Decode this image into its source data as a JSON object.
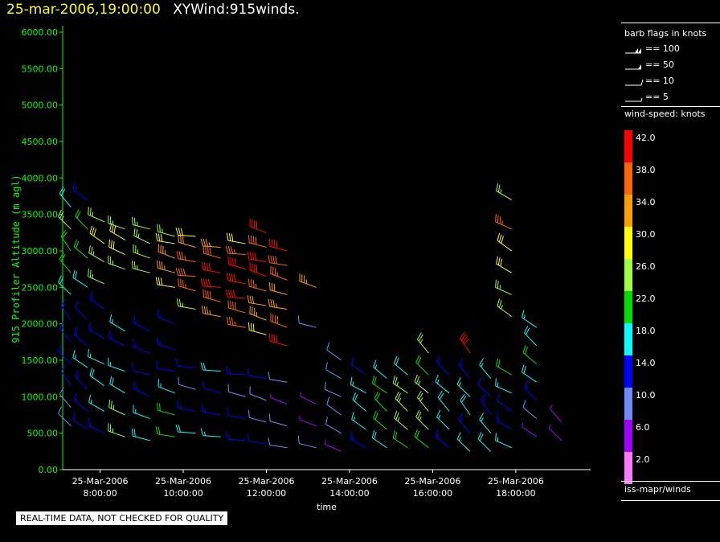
{
  "title": {
    "date": "25-mar-2006,19:00:00",
    "main": "XYWind:915winds."
  },
  "legend": {
    "flags_title": "barb flags in knots",
    "flags": [
      {
        "label": "== 100",
        "value": 100
      },
      {
        "label": "== 50",
        "value": 50
      },
      {
        "label": "== 10",
        "value": 10
      },
      {
        "label": "== 5",
        "value": 5
      }
    ],
    "colorbar_title": "wind-speed: knots",
    "colorbar": [
      {
        "label": "42.0",
        "color": "#ff0000"
      },
      {
        "label": "38.0",
        "color": "#ff6600"
      },
      {
        "label": "34.0",
        "color": "#ffa000"
      },
      {
        "label": "30.0",
        "color": "#ffff00"
      },
      {
        "label": "26.0",
        "color": "#a0ff3c"
      },
      {
        "label": "22.0",
        "color": "#00e000"
      },
      {
        "label": "18.0",
        "color": "#00ffff"
      },
      {
        "label": "14.0",
        "color": "#0000ff"
      },
      {
        "label": "10.0",
        "color": "#6e8cff"
      },
      {
        "label": "6.0",
        "color": "#a000ff"
      },
      {
        "label": "2.0",
        "color": "#ff78ff"
      }
    ],
    "source": "iss-mapr/winds"
  },
  "qc_note": "REAL-TIME DATA, NOT CHECKED FOR QUALITY",
  "chart_data": {
    "type": "scatter",
    "subtype": "wind-barb",
    "xlabel": "time",
    "ylabel": "915 Profiler Altitude (m agl)",
    "x_ticks": [
      {
        "line1": "25-Mar-2006",
        "line2": "8:00:00",
        "hour": 8
      },
      {
        "line1": "25-Mar-2006",
        "line2": "10:00:00",
        "hour": 10
      },
      {
        "line1": "25-Mar-2006",
        "line2": "12:00:00",
        "hour": 12
      },
      {
        "line1": "25-Mar-2006",
        "line2": "14:00:00",
        "hour": 14
      },
      {
        "line1": "25-Mar-2006",
        "line2": "16:00:00",
        "hour": 16
      },
      {
        "line1": "25-Mar-2006",
        "line2": "18:00:00",
        "hour": 18
      }
    ],
    "xlim": [
      7.1,
      19.8
    ],
    "y_ticks": [
      "0.00",
      "500.00",
      "1000.00",
      "1500.00",
      "2000.00",
      "2500.00",
      "3000.00",
      "3500.00",
      "4000.00",
      "4500.00",
      "5000.00",
      "5500.00",
      "6000.00"
    ],
    "ylim": [
      0,
      6000
    ],
    "axis_color": "#00ff00",
    "series": [
      {
        "hour": 7.3,
        "altitudes": [
          600,
          850,
          1150,
          1450,
          1750,
          2050,
          2400,
          2700,
          3000,
          3300,
          3600
        ],
        "speeds": [
          8,
          10,
          12,
          14,
          13,
          15,
          18,
          20,
          22,
          24,
          19
        ],
        "direction": 320
      },
      {
        "hour": 7.7,
        "altitudes": [
          550,
          800,
          1100,
          1400,
          1700,
          2050,
          2500,
          2900,
          3300,
          3700
        ],
        "speeds": [
          12,
          14,
          15,
          16,
          14,
          12,
          18,
          22,
          20,
          15
        ],
        "direction": 310
      },
      {
        "hour": 8.1,
        "altitudes": [
          500,
          800,
          1150,
          1450,
          1800,
          2200,
          2550,
          2850,
          3100,
          3400
        ],
        "speeds": [
          14,
          16,
          18,
          17,
          15,
          14,
          24,
          26,
          28,
          24
        ],
        "direction": 300
      },
      {
        "hour": 8.6,
        "altitudes": [
          450,
          750,
          1050,
          1350,
          1700,
          1900,
          2750,
          2950,
          3150,
          3300
        ],
        "speeds": [
          26,
          24,
          18,
          16,
          14,
          16,
          27,
          29,
          28,
          26
        ],
        "direction": 295
      },
      {
        "hour": 9.2,
        "altitudes": [
          400,
          700,
          1000,
          1300,
          1600,
          1900,
          2700,
          2900,
          3100,
          3300
        ],
        "speeds": [
          18,
          16,
          14,
          12,
          15,
          14,
          24,
          26,
          27,
          25
        ],
        "direction": 290
      },
      {
        "hour": 9.8,
        "altitudes": [
          450,
          750,
          1050,
          1350,
          1650,
          2000,
          2500,
          2700,
          2900,
          3100,
          3200
        ],
        "speeds": [
          22,
          20,
          16,
          12,
          14,
          14,
          30,
          34,
          33,
          28,
          26
        ],
        "direction": 285
      },
      {
        "hour": 10.3,
        "altitudes": [
          500,
          800,
          1100,
          1400,
          2200,
          2450,
          2650,
          2850,
          3050,
          3200
        ],
        "speeds": [
          18,
          14,
          10,
          12,
          24,
          36,
          38,
          36,
          32,
          28
        ],
        "direction": 280
      },
      {
        "hour": 10.9,
        "altitudes": [
          450,
          750,
          1050,
          1350,
          2100,
          2300,
          2500,
          2700,
          2900,
          3050
        ],
        "speeds": [
          16,
          14,
          12,
          18,
          34,
          38,
          40,
          42,
          38,
          34
        ],
        "direction": 280
      },
      {
        "hour": 11.5,
        "altitudes": [
          400,
          700,
          1000,
          1300,
          1950,
          2150,
          2350,
          2550,
          2750,
          2950,
          3100
        ],
        "speeds": [
          14,
          12,
          8,
          14,
          36,
          38,
          40,
          42,
          40,
          36,
          30
        ],
        "direction": 280
      },
      {
        "hour": 12.0,
        "altitudes": [
          350,
          650,
          950,
          1250,
          1850,
          2050,
          2250,
          2450,
          2650,
          2850,
          3050,
          3250
        ],
        "speeds": [
          12,
          10,
          8,
          12,
          30,
          34,
          32,
          36,
          40,
          42,
          38,
          42
        ],
        "direction": 285
      },
      {
        "hour": 12.5,
        "altitudes": [
          300,
          600,
          900,
          1200,
          1700,
          1950,
          2200,
          2400,
          2600,
          2800,
          3000
        ],
        "speeds": [
          10,
          8,
          6,
          8,
          42,
          38,
          34,
          32,
          36,
          38,
          40
        ],
        "direction": 285
      },
      {
        "hour": 13.2,
        "altitudes": [
          300,
          600,
          900,
          1950,
          2500
        ],
        "speeds": [
          8,
          6,
          6,
          8,
          34
        ],
        "direction": 290
      },
      {
        "hour": 13.8,
        "altitudes": [
          250,
          500,
          750,
          1000,
          1250,
          1500
        ],
        "speeds": [
          6,
          8,
          10,
          10,
          8,
          8
        ],
        "direction": 300
      },
      {
        "hour": 14.4,
        "altitudes": [
          300,
          550,
          800,
          1050,
          1300
        ],
        "speeds": [
          14,
          16,
          18,
          16,
          12
        ],
        "direction": 305
      },
      {
        "hour": 14.9,
        "altitudes": [
          300,
          550,
          800,
          1050,
          1250
        ],
        "speeds": [
          18,
          20,
          22,
          20,
          16
        ],
        "direction": 310
      },
      {
        "hour": 15.4,
        "altitudes": [
          300,
          550,
          800,
          1050,
          1300
        ],
        "speeds": [
          22,
          24,
          26,
          24,
          18
        ],
        "direction": 310
      },
      {
        "hour": 15.9,
        "altitudes": [
          300,
          550,
          800,
          1050,
          1300,
          1600
        ],
        "speeds": [
          20,
          24,
          26,
          24,
          20,
          24
        ],
        "direction": 315
      },
      {
        "hour": 16.4,
        "altitudes": [
          300,
          550,
          800,
          1050,
          1300
        ],
        "speeds": [
          14,
          16,
          18,
          16,
          14
        ],
        "direction": 315
      },
      {
        "hour": 16.9,
        "altitudes": [
          250,
          500,
          750,
          1000,
          1250,
          1600
        ],
        "speeds": [
          16,
          14,
          18,
          16,
          14,
          40
        ],
        "direction": 320
      },
      {
        "hour": 17.4,
        "altitudes": [
          250,
          500,
          750,
          1000,
          1250
        ],
        "speeds": [
          18,
          16,
          14,
          12,
          16
        ],
        "direction": 320
      },
      {
        "hour": 17.9,
        "altitudes": [
          300,
          550,
          800,
          1050,
          1300,
          2100,
          2400,
          2700,
          3000,
          3300,
          3700
        ],
        "speeds": [
          16,
          14,
          12,
          16,
          20,
          24,
          26,
          28,
          30,
          36,
          26
        ],
        "direction": 300
      },
      {
        "hour": 18.5,
        "altitudes": [
          450,
          700,
          950,
          1200,
          1450,
          1700,
          1950
        ],
        "speeds": [
          6,
          10,
          14,
          18,
          20,
          18,
          16
        ],
        "direction": 310
      },
      {
        "hour": 19.1,
        "altitudes": [
          400,
          650
        ],
        "speeds": [
          6,
          4
        ],
        "direction": 320
      }
    ]
  }
}
